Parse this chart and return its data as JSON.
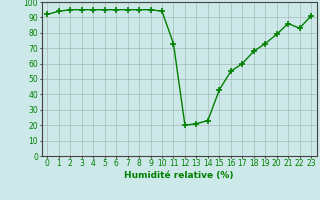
{
  "x": [
    0,
    1,
    2,
    3,
    4,
    5,
    6,
    7,
    8,
    9,
    10,
    11,
    12,
    13,
    14,
    15,
    16,
    17,
    18,
    19,
    20,
    21,
    22,
    23
  ],
  "y": [
    92,
    94,
    95,
    95,
    95,
    95,
    95,
    95,
    95,
    95,
    94,
    73,
    20,
    21,
    23,
    43,
    55,
    60,
    68,
    73,
    79,
    86,
    83,
    91
  ],
  "line_color": "#008000",
  "marker": "+",
  "marker_size": 4,
  "marker_edge_width": 1.2,
  "line_width": 1.0,
  "xlabel": "Humidité relative (%)",
  "ylim": [
    0,
    100
  ],
  "xlim_min": -0.5,
  "xlim_max": 23.5,
  "yticks": [
    0,
    10,
    20,
    30,
    40,
    50,
    60,
    70,
    80,
    90,
    100
  ],
  "xticks": [
    0,
    1,
    2,
    3,
    4,
    5,
    6,
    7,
    8,
    9,
    10,
    11,
    12,
    13,
    14,
    15,
    16,
    17,
    18,
    19,
    20,
    21,
    22,
    23
  ],
  "background_color": "#cce8e8",
  "grid_color": "#aababa",
  "xlabel_color": "#008000",
  "tick_label_color": "#008000",
  "xlabel_fontsize": 6.5,
  "tick_fontsize": 5.5
}
